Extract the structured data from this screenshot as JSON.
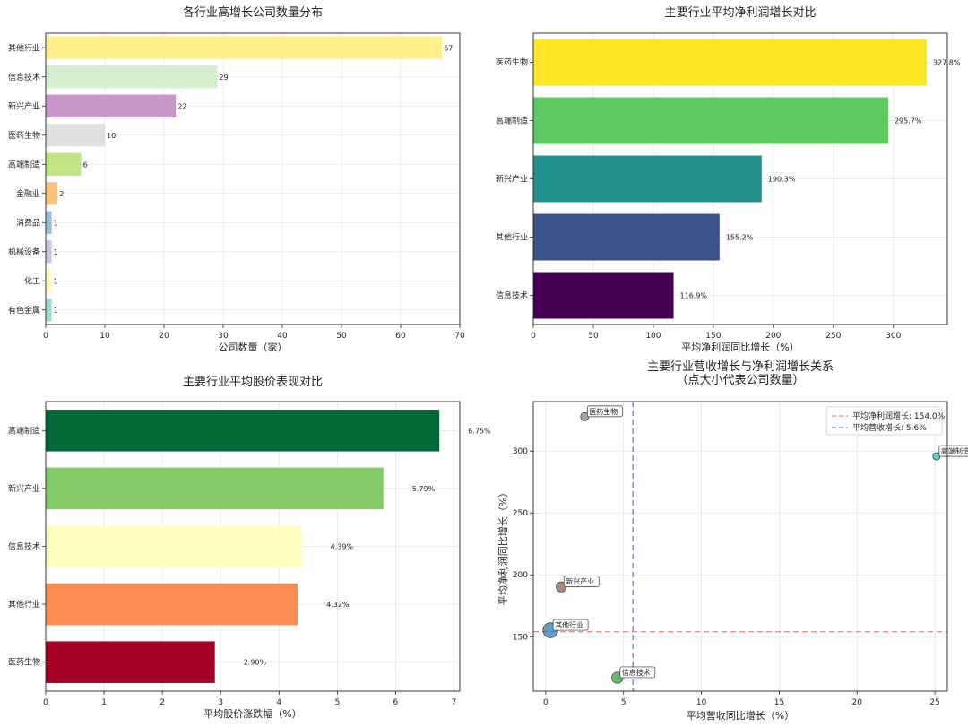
{
  "chart_data": [
    {
      "type": "bar",
      "orientation": "horizontal",
      "title": "各行业高增长公司数量分布",
      "xlabel": "公司数量（家）",
      "ylabel": "",
      "xlim": [
        0,
        70
      ],
      "xticks": [
        0,
        10,
        20,
        30,
        40,
        50,
        60,
        70
      ],
      "grid": true,
      "categories": [
        "其他行业",
        "信息技术",
        "新兴产业",
        "医药生物",
        "高端制造",
        "金融业",
        "消费品",
        "机械设备",
        "化工",
        "有色金属"
      ],
      "values": [
        67,
        29,
        22,
        10,
        6,
        2,
        1,
        1,
        1,
        1
      ],
      "labels": [
        "67",
        "29",
        "22",
        "10",
        "6",
        "2",
        "1",
        "1",
        "1",
        "1"
      ],
      "colors": [
        "#ffed6f",
        "#ccebc5",
        "#bc80bd",
        "#d9d9d9",
        "#b3de69",
        "#fdb462",
        "#80b1d3",
        "#bebada",
        "#ffffb3",
        "#8dd3c7"
      ]
    },
    {
      "type": "bar",
      "orientation": "horizontal",
      "title": "主要行业平均净利润增长对比",
      "xlabel": "平均净利润同比增长（%）",
      "ylabel": "",
      "xlim": [
        0,
        345
      ],
      "xticks": [
        0,
        50,
        100,
        150,
        200,
        250,
        300
      ],
      "grid": true,
      "categories": [
        "医药生物",
        "高端制造",
        "新兴产业",
        "其他行业",
        "信息技术"
      ],
      "values": [
        327.8,
        295.7,
        190.3,
        155.2,
        116.9
      ],
      "labels": [
        "327.8%",
        "295.7%",
        "190.3%",
        "155.2%",
        "116.9%"
      ],
      "colors": [
        "#fde725",
        "#5ec962",
        "#21918c",
        "#3b528b",
        "#440154"
      ]
    },
    {
      "type": "bar",
      "orientation": "horizontal",
      "title": "主要行业平均股价表现对比",
      "xlabel": "平均股价涨跌幅（%）",
      "ylabel": "",
      "xlim": [
        0,
        7.1
      ],
      "xticks": [
        0,
        1,
        2,
        3,
        4,
        5,
        6,
        7
      ],
      "grid": true,
      "categories": [
        "高端制造",
        "新兴产业",
        "信息技术",
        "其他行业",
        "医药生物"
      ],
      "values": [
        6.75,
        5.79,
        4.39,
        4.32,
        2.9
      ],
      "labels": [
        "6.75%",
        "5.79%",
        "4.39%",
        "4.32%",
        "2.90%"
      ],
      "colors": [
        "#006837",
        "#84ca66",
        "#ffffbf",
        "#fb8d52",
        "#a50026"
      ]
    },
    {
      "type": "scatter",
      "title": "主要行业营收增长与净利润增长关系",
      "subtitle": "（点大小代表公司数量）",
      "xlabel": "平均营收同比增长（%）",
      "ylabel": "平均净利润同比增长（%）",
      "xlim": [
        -0.8,
        25.8
      ],
      "ylim": [
        106,
        340
      ],
      "xticks": [
        0,
        5,
        10,
        15,
        20,
        25
      ],
      "yticks": [
        150,
        200,
        250,
        300
      ],
      "grid": true,
      "legend_position": "top-right",
      "points": [
        {
          "name": "医药生物",
          "x": 2.5,
          "y": 327.8,
          "count": 10,
          "color": "#7f7f7f"
        },
        {
          "name": "高端制造",
          "x": 25.1,
          "y": 295.7,
          "count": 6,
          "color": "#17becf"
        },
        {
          "name": "新兴产业",
          "x": 1.0,
          "y": 190.3,
          "count": 22,
          "color": "#8c564b"
        },
        {
          "name": "其他行业",
          "x": 0.3,
          "y": 155.2,
          "count": 67,
          "color": "#1f77b4"
        },
        {
          "name": "信息技术",
          "x": 4.6,
          "y": 116.9,
          "count": 29,
          "color": "#2ca02c"
        }
      ],
      "reference_lines": [
        {
          "orientation": "horizontal",
          "value": 154.0,
          "label": "平均净利润增长: 154.0%",
          "color": "#e06666"
        },
        {
          "orientation": "vertical",
          "value": 5.6,
          "label": "平均营收增长: 5.6%",
          "color": "#5b5bd6"
        }
      ]
    }
  ]
}
